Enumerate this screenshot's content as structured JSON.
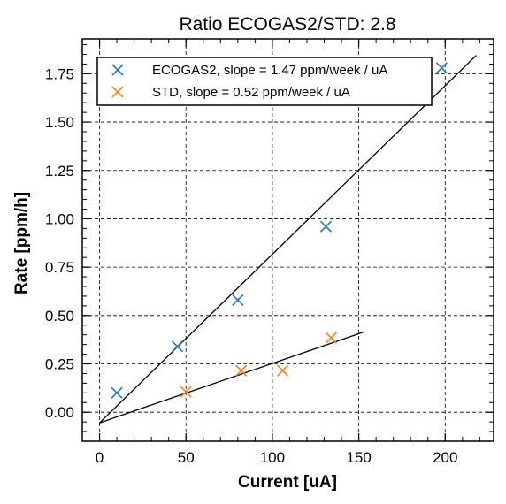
{
  "chart_data": {
    "type": "scatter",
    "title": "Ratio ECOGAS2/STD: 2.8",
    "xlabel": "Current [uA]",
    "ylabel": "Rate [ppm/h]",
    "xlim": [
      -10,
      228
    ],
    "ylim": [
      -0.15,
      1.93
    ],
    "xticks": [
      0,
      50,
      100,
      150,
      200
    ],
    "xtick_labels": [
      "0",
      "50",
      "100",
      "150",
      "200"
    ],
    "yticks": [
      0.0,
      0.25,
      0.5,
      0.75,
      1.0,
      1.25,
      1.5,
      1.75
    ],
    "ytick_labels": [
      "0.00",
      "0.25",
      "0.50",
      "0.75",
      "1.00",
      "1.25",
      "1.50",
      "1.75"
    ],
    "grid": true,
    "legend_position": "top",
    "series": [
      {
        "name": "ECOGAS2, slope = 1.47 ppm/week / uA",
        "color": "#1f77b4",
        "marker": "x",
        "points": [
          [
            10,
            0.1
          ],
          [
            45,
            0.34
          ],
          [
            80,
            0.58
          ],
          [
            131,
            0.96
          ],
          [
            198,
            1.78
          ]
        ],
        "fit_line": [
          [
            0,
            -0.055
          ],
          [
            218,
            1.845
          ]
        ]
      },
      {
        "name": "STD, slope = 0.52 ppm/week / uA",
        "color": "#ff7f0e",
        "marker": "x",
        "points": [
          [
            50,
            0.105
          ],
          [
            82,
            0.215
          ],
          [
            106,
            0.215
          ],
          [
            134,
            0.385
          ]
        ],
        "fit_line": [
          [
            0,
            -0.055
          ],
          [
            153,
            0.415
          ]
        ]
      }
    ]
  }
}
